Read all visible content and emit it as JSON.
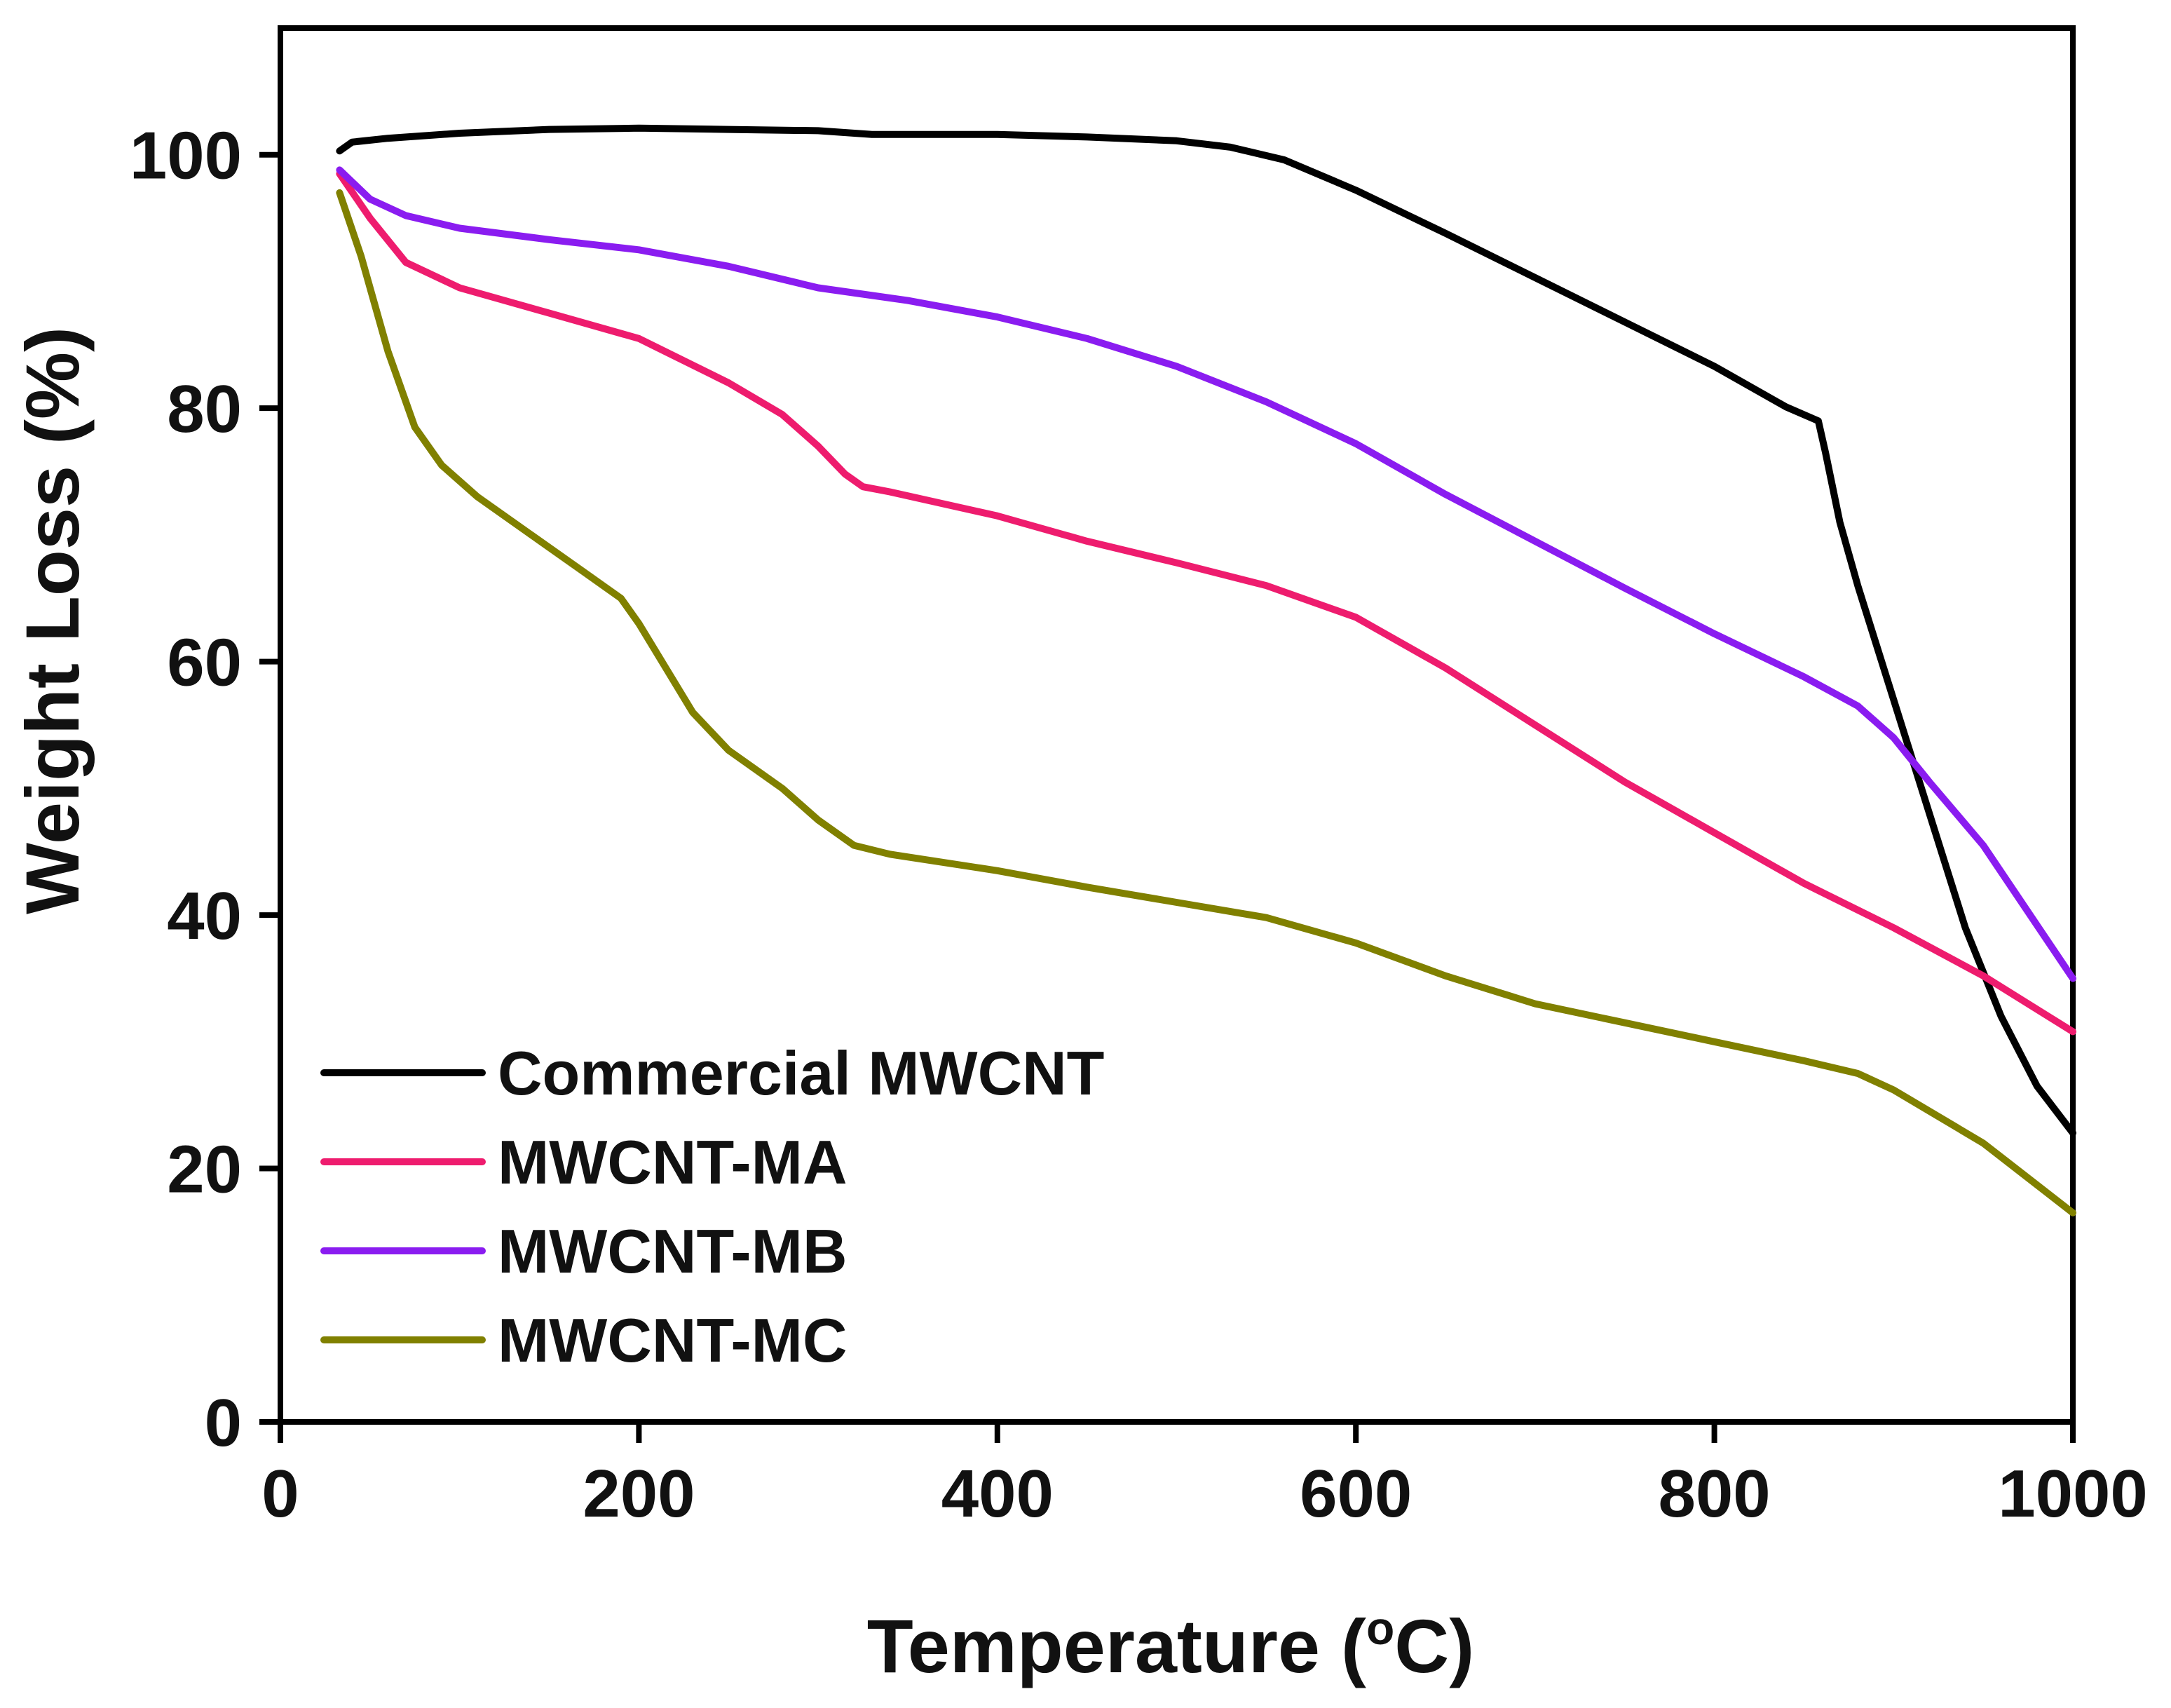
{
  "chart_data": {
    "type": "line",
    "title": "",
    "xlabel": {
      "main": "Temperature (",
      "sup": "o",
      "unit": "C)"
    },
    "ylabel": "Weight Loss (%)",
    "xlim": [
      0,
      1000
    ],
    "ylim": [
      0,
      110
    ],
    "xticks": [
      0,
      200,
      400,
      600,
      800,
      1000
    ],
    "yticks": [
      0,
      20,
      40,
      60,
      80,
      100
    ],
    "grid": false,
    "legend_position": "bottom-left",
    "series": [
      {
        "name": "Commercial MWCNT",
        "color": "#000000",
        "x": [
          33,
          40,
          60,
          100,
          150,
          200,
          250,
          300,
          330,
          400,
          450,
          500,
          530,
          560,
          600,
          650,
          700,
          750,
          800,
          840,
          858,
          862,
          870,
          880,
          900,
          920,
          940,
          960,
          980,
          1000
        ],
        "y": [
          100.3,
          101.0,
          101.3,
          101.7,
          102.0,
          102.1,
          102.0,
          101.9,
          101.6,
          101.6,
          101.4,
          101.1,
          100.6,
          99.6,
          97.2,
          93.8,
          90.3,
          86.8,
          83.3,
          80.1,
          79.0,
          76.5,
          71.0,
          66.0,
          57.0,
          48.0,
          39.0,
          32.0,
          26.5,
          22.8
        ]
      },
      {
        "name": "MWCNT-MA",
        "color": "#ee1c6e",
        "x": [
          33,
          50,
          70,
          100,
          150,
          200,
          250,
          280,
          300,
          315,
          325,
          340,
          400,
          450,
          500,
          550,
          600,
          650,
          700,
          750,
          800,
          850,
          900,
          950,
          1000
        ],
        "y": [
          98.5,
          95.0,
          91.5,
          89.5,
          87.5,
          85.5,
          82.0,
          79.5,
          77.0,
          74.8,
          73.8,
          73.4,
          71.5,
          69.5,
          67.8,
          66.0,
          63.5,
          59.5,
          55.0,
          50.5,
          46.5,
          42.5,
          39.0,
          35.2,
          30.8
        ]
      },
      {
        "name": "MWCNT-MB",
        "color": "#8a1cf0",
        "x": [
          33,
          50,
          70,
          100,
          150,
          200,
          250,
          300,
          350,
          400,
          450,
          500,
          550,
          600,
          650,
          700,
          750,
          800,
          850,
          880,
          900,
          920,
          950,
          1000
        ],
        "y": [
          98.8,
          96.5,
          95.2,
          94.2,
          93.3,
          92.5,
          91.2,
          89.5,
          88.5,
          87.2,
          85.5,
          83.3,
          80.5,
          77.2,
          73.2,
          69.5,
          65.8,
          62.2,
          58.8,
          56.5,
          54.0,
          50.5,
          45.5,
          35.0
        ]
      },
      {
        "name": "MWCNT-MC",
        "color": "#808000",
        "x": [
          33,
          45,
          60,
          75,
          90,
          110,
          140,
          170,
          190,
          200,
          215,
          230,
          250,
          280,
          300,
          320,
          340,
          400,
          450,
          500,
          550,
          600,
          650,
          700,
          750,
          800,
          850,
          880,
          900,
          950,
          1000
        ],
        "y": [
          97.0,
          92.0,
          84.5,
          78.5,
          75.5,
          73.0,
          70.0,
          67.0,
          65.0,
          63.0,
          59.5,
          56.0,
          53.0,
          50.0,
          47.5,
          45.5,
          44.8,
          43.5,
          42.2,
          41.0,
          39.8,
          37.8,
          35.2,
          33.0,
          31.5,
          30.0,
          28.5,
          27.5,
          26.2,
          22.0,
          16.5
        ]
      }
    ]
  }
}
